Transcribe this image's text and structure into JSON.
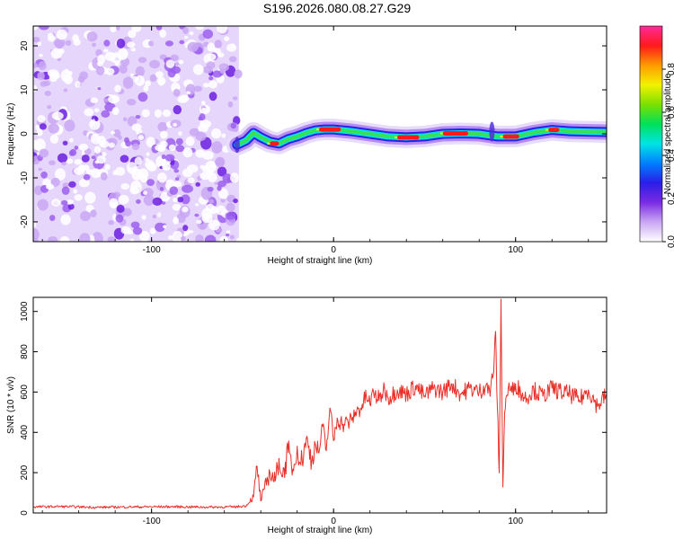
{
  "figure_title": "S196.2026.080.08.27.G29",
  "chart_data": [
    {
      "id": "spectrogram",
      "type": "heatmap",
      "title": "",
      "xlabel": "Height of straight line (km)",
      "ylabel": "Frequency (Hz)",
      "xlim": [
        -165,
        150
      ],
      "ylim": [
        -24.5,
        24.5
      ],
      "xticks": [
        -100,
        0,
        100
      ],
      "xtick_labels": [
        "-100",
        "0",
        "100"
      ],
      "yticks": [
        -20,
        -10,
        0,
        10,
        20
      ],
      "ytick_labels": [
        "-20",
        "-10",
        "0",
        "10",
        "20"
      ],
      "noise_region_x": [
        -165,
        -52
      ],
      "signal_track": [
        {
          "x": -53,
          "y": -2.5
        },
        {
          "x": -48,
          "y": -1.5
        },
        {
          "x": -44,
          "y": 0.2
        },
        {
          "x": -40,
          "y": -0.8
        },
        {
          "x": -35,
          "y": -1.8
        },
        {
          "x": -30,
          "y": -2.2
        },
        {
          "x": -25,
          "y": -1.2
        },
        {
          "x": -20,
          "y": -0.6
        },
        {
          "x": -15,
          "y": 0.2
        },
        {
          "x": -10,
          "y": 0.8
        },
        {
          "x": -5,
          "y": 1.0
        },
        {
          "x": 0,
          "y": 1.0
        },
        {
          "x": 10,
          "y": 0.6
        },
        {
          "x": 20,
          "y": 0.0
        },
        {
          "x": 30,
          "y": -0.6
        },
        {
          "x": 40,
          "y": -0.8
        },
        {
          "x": 50,
          "y": -0.6
        },
        {
          "x": 60,
          "y": 0.0
        },
        {
          "x": 70,
          "y": 0.1
        },
        {
          "x": 80,
          "y": 0.0
        },
        {
          "x": 85,
          "y": -0.3
        },
        {
          "x": 90,
          "y": -0.6
        },
        {
          "x": 100,
          "y": -0.6
        },
        {
          "x": 110,
          "y": 0.3
        },
        {
          "x": 120,
          "y": 0.9
        },
        {
          "x": 130,
          "y": 0.6
        },
        {
          "x": 140,
          "y": 0.5
        },
        {
          "x": 150,
          "y": 0.4
        }
      ],
      "peak_segments": [
        {
          "x0": -35,
          "x1": -30,
          "y": -2.2
        },
        {
          "x0": -8,
          "x1": 4,
          "y": 1.0
        },
        {
          "x0": 35,
          "x1": 47,
          "y": -0.8
        },
        {
          "x0": 60,
          "x1": 74,
          "y": 0.1
        },
        {
          "x0": 93,
          "x1": 102,
          "y": -0.6
        },
        {
          "x0": 118,
          "x1": 124,
          "y": 0.9
        }
      ],
      "colorbar": {
        "label": "Normalized spectral amplitude",
        "range": [
          0,
          1
        ],
        "ticks": [
          0.0,
          0.2,
          0.4,
          0.6,
          0.8
        ],
        "tick_labels": [
          "0.0",
          "0.2",
          "0.4",
          "0.6",
          "0.8"
        ],
        "colors": [
          "#ffffff",
          "#c9a7f3",
          "#7b2be2",
          "#2a1ee8",
          "#0080ff",
          "#00e5e5",
          "#00e05a",
          "#7ce000",
          "#f2f200",
          "#ff9a00",
          "#ff1a1a",
          "#ff2a9a"
        ]
      }
    },
    {
      "id": "snr",
      "type": "line",
      "title": "",
      "xlabel": "Height of straight line (km)",
      "ylabel": "SNR (10 * v/v)",
      "xlim": [
        -165,
        150
      ],
      "ylim": [
        0,
        1070
      ],
      "xticks": [
        -100,
        0,
        100
      ],
      "xtick_labels": [
        "-100",
        "0",
        "100"
      ],
      "yticks": [
        0,
        200,
        400,
        600,
        800,
        1000
      ],
      "ytick_labels": [
        "0",
        "200",
        "400",
        "600",
        "800",
        "1000"
      ],
      "color": "#e8302a",
      "series": [
        {
          "name": "SNR",
          "x": [
            -165,
            -150,
            -130,
            -110,
            -90,
            -70,
            -55,
            -48,
            -44,
            -42,
            -40,
            -38,
            -35,
            -32,
            -30,
            -28,
            -25,
            -22,
            -20,
            -18,
            -15,
            -12,
            -10,
            -8,
            -6,
            -4,
            -2,
            0,
            2,
            5,
            8,
            10,
            12,
            15,
            18,
            20,
            22,
            25,
            28,
            30,
            35,
            40,
            45,
            50,
            55,
            60,
            65,
            70,
            75,
            80,
            84,
            86,
            87,
            88,
            89,
            90,
            91,
            92,
            93,
            94,
            95,
            96,
            98,
            100,
            105,
            110,
            115,
            120,
            125,
            130,
            135,
            140,
            145,
            150
          ],
          "values": [
            30,
            32,
            28,
            30,
            31,
            29,
            30,
            35,
            80,
            230,
            60,
            120,
            200,
            160,
            270,
            180,
            300,
            210,
            330,
            240,
            370,
            260,
            340,
            300,
            430,
            310,
            520,
            360,
            470,
            440,
            450,
            460,
            500,
            520,
            580,
            540,
            600,
            560,
            620,
            570,
            610,
            590,
            630,
            580,
            620,
            600,
            640,
            590,
            620,
            600,
            640,
            580,
            690,
            700,
            900,
            520,
            200,
            1060,
            130,
            500,
            580,
            620,
            600,
            640,
            570,
            610,
            580,
            620,
            600,
            590,
            560,
            610,
            530,
            590
          ]
        }
      ]
    }
  ]
}
